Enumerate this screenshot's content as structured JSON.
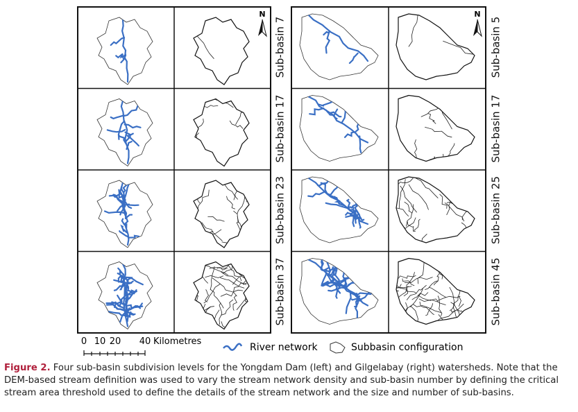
{
  "left_panel": {
    "rows": [
      "Sub-basin 7",
      "Sub-basin 17",
      "Sub-basin 23",
      "Sub-basin 37"
    ]
  },
  "right_panel": {
    "rows": [
      "Sub-basin 5",
      "Sub-basin 17",
      "Sub-basin 25",
      "Sub-basin 45"
    ]
  },
  "north_label": "N",
  "scale_bar": {
    "ticks": [
      "0",
      "10",
      "20",
      "40"
    ],
    "unit": "Kilometres"
  },
  "legend": {
    "river": "River network",
    "subbasin": "Subbasin configuration"
  },
  "caption": {
    "label": "Figure 2.",
    "text": "Four sub-basin subdivision levels for the Yongdam Dam (left) and Gilgelabay (right) watersheds. Note that the DEM-based stream definition was used to vary the stream network density and sub-basin number by defining the critical stream area threshold used to define the details of the stream network and the size and number of sub-basins."
  }
}
